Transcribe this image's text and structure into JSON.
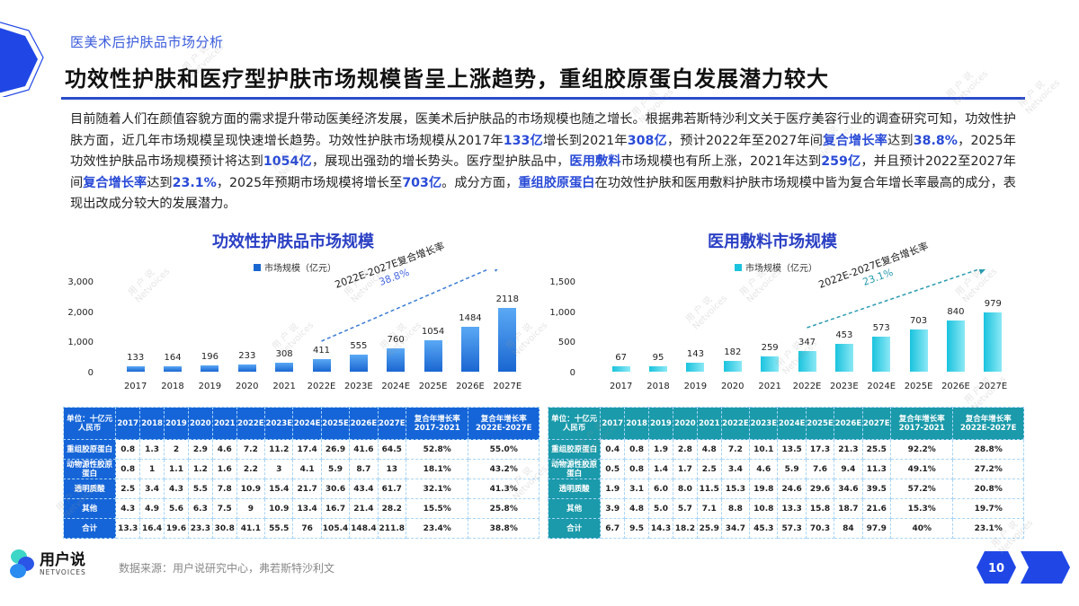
{
  "header": {
    "section_label": "医美术后护肤品市场分析",
    "title": "功效性护肤和医疗型护肤市场规模皆呈上涨趋势，重组胶原蛋白发展潜力较大"
  },
  "intro": {
    "segments": [
      {
        "t": "目前随着人们在颜值容貌方面的需求提升带动医美经济发展，医美术后护肤品的市场规模也随之增长。根据弗若斯特沙利文关于医疗美容行业的调查研究可知，功效性护肤方面，近几年市场规模呈现快速增长趋势。功效性护肤市场规模从2017年",
        "hl": false
      },
      {
        "t": "133亿",
        "hl": true
      },
      {
        "t": "增长到2021年",
        "hl": false
      },
      {
        "t": "308亿",
        "hl": true
      },
      {
        "t": "，预计2022年至2027年间",
        "hl": false
      },
      {
        "t": "复合增长率",
        "hl": true
      },
      {
        "t": "达到",
        "hl": false
      },
      {
        "t": "38.8%",
        "hl": true
      },
      {
        "t": "，2025年功效性护肤品市场规模预计将达到",
        "hl": false
      },
      {
        "t": "1054亿",
        "hl": true
      },
      {
        "t": "，展现出强劲的增长势头。医疗型护肤品中，",
        "hl": false
      },
      {
        "t": "医用敷料",
        "hl": true
      },
      {
        "t": "市场规模也有所上涨，2021年达到",
        "hl": false
      },
      {
        "t": "259亿",
        "hl": true
      },
      {
        "t": "，并且预计2022至2027年间",
        "hl": false
      },
      {
        "t": "复合增长率",
        "hl": true
      },
      {
        "t": "达到",
        "hl": false
      },
      {
        "t": "23.1%",
        "hl": true
      },
      {
        "t": "，2025年预期市场规模将增长至",
        "hl": false
      },
      {
        "t": "703亿",
        "hl": true
      },
      {
        "t": "。成分方面，",
        "hl": false
      },
      {
        "t": "重组胶原蛋白",
        "hl": true
      },
      {
        "t": "在功效性护肤和医用敷料护肤市场规模中皆为复合年增长率最高的成分，表现出改成分较大的发展潜力。",
        "hl": false
      }
    ]
  },
  "chart_data": [
    {
      "type": "bar",
      "title": "功效性护肤品市场规模",
      "legend": [
        "市场规模（亿元）"
      ],
      "categories": [
        "2017",
        "2018",
        "2019",
        "2020",
        "2021",
        "2022E",
        "2023E",
        "2024E",
        "2025E",
        "2026E",
        "2027E"
      ],
      "values": [
        133,
        164,
        196,
        233,
        308,
        411,
        555,
        760,
        1054,
        1484,
        2118
      ],
      "yticks": [
        "0",
        "1,000",
        "2,000",
        "3,000"
      ],
      "ylim": [
        0,
        3000
      ],
      "annotation": {
        "label": "2022E-2027E复合增长率",
        "value": "38.8%"
      },
      "color": "#1a66d1",
      "grid": false,
      "legend_position": "top"
    },
    {
      "type": "bar",
      "title": "医用敷料市场规模",
      "legend": [
        "市场规模（亿元）"
      ],
      "categories": [
        "2017",
        "2018",
        "2019",
        "2020",
        "2021",
        "2022E",
        "2023E",
        "2024E",
        "2025E",
        "2026E",
        "2027E"
      ],
      "values": [
        67,
        95,
        143,
        182,
        259,
        347,
        453,
        573,
        703,
        840,
        979
      ],
      "yticks": [
        "0",
        "500",
        "1,000",
        "1,500"
      ],
      "ylim": [
        0,
        1500
      ],
      "annotation": {
        "label": "2022E-2027E复合增长率",
        "value": "23.1%"
      },
      "color": "#1ac3de",
      "grid": false,
      "legend_position": "top"
    }
  ],
  "tables": [
    {
      "unit_header": "单位：十亿元人民币",
      "columns": [
        "2017",
        "2018",
        "2019",
        "2020",
        "2021",
        "2022E",
        "2023E",
        "2024E",
        "2025E",
        "2026E",
        "2027E",
        "复合年增长率2017-2021",
        "复合年增长率2022E-2027E"
      ],
      "rows": [
        {
          "name": "重组胶原蛋白",
          "values": [
            "0.8",
            "1.3",
            "2",
            "2.9",
            "4.6",
            "7.2",
            "11.2",
            "17.4",
            "26.9",
            "41.6",
            "64.5",
            "52.8%",
            "55.0%"
          ]
        },
        {
          "name": "动物源性胶原蛋白",
          "values": [
            "0.8",
            "1",
            "1.1",
            "1.2",
            "1.6",
            "2.2",
            "3",
            "4.1",
            "5.9",
            "8.7",
            "13",
            "18.1%",
            "43.2%"
          ]
        },
        {
          "name": "透明质酸",
          "values": [
            "2.5",
            "3.4",
            "4.3",
            "5.5",
            "7.8",
            "10.9",
            "15.4",
            "21.7",
            "30.6",
            "43.4",
            "61.7",
            "32.1%",
            "41.3%"
          ]
        },
        {
          "name": "其他",
          "values": [
            "4.3",
            "4.9",
            "5.6",
            "6.3",
            "7.5",
            "9",
            "10.9",
            "13.4",
            "16.7",
            "21.4",
            "28.2",
            "15.5%",
            "25.8%"
          ]
        },
        {
          "name": "合计",
          "values": [
            "13.3",
            "16.4",
            "19.6",
            "23.3",
            "30.8",
            "41.1",
            "55.5",
            "76",
            "105.4",
            "148.4",
            "211.8",
            "23.4%",
            "38.8%"
          ]
        }
      ]
    },
    {
      "unit_header": "单位：十亿元人民币",
      "columns": [
        "2017",
        "2018",
        "2019",
        "2020",
        "2021",
        "2022E",
        "2023E",
        "2024E",
        "2025E",
        "2026E",
        "2027E",
        "复合年增长率2017-2021",
        "复合年增长率2022E-2027E"
      ],
      "rows": [
        {
          "name": "重组胶原蛋白",
          "values": [
            "0.4",
            "0.8",
            "1.9",
            "2.8",
            "4.8",
            "7.2",
            "10.1",
            "13.5",
            "17.3",
            "21.3",
            "25.5",
            "92.2%",
            "28.8%"
          ]
        },
        {
          "name": "动物源性胶原蛋白",
          "values": [
            "0.5",
            "0.8",
            "1.4",
            "1.7",
            "2.5",
            "3.4",
            "4.6",
            "5.9",
            "7.6",
            "9.4",
            "11.3",
            "49.1%",
            "27.2%"
          ]
        },
        {
          "name": "透明质酸",
          "values": [
            "1.9",
            "3.1",
            "6.0",
            "8.0",
            "11.5",
            "15.3",
            "19.8",
            "24.6",
            "29.6",
            "34.6",
            "39.5",
            "57.2%",
            "20.8%"
          ]
        },
        {
          "name": "其他",
          "values": [
            "3.9",
            "4.8",
            "5.0",
            "5.7",
            "7.1",
            "8.8",
            "10.8",
            "13.3",
            "15.8",
            "18.7",
            "21.6",
            "15.3%",
            "19.7%"
          ]
        },
        {
          "name": "合计",
          "values": [
            "6.7",
            "9.5",
            "14.3",
            "18.2",
            "25.9",
            "34.7",
            "45.3",
            "57.3",
            "70.3",
            "84",
            "97.9",
            "40%",
            "23.1%"
          ]
        }
      ]
    }
  ],
  "footer": {
    "logo_cn": "用户说",
    "logo_en": "NETVOICES",
    "source": "数据来源：用户说研究中心，弗若斯特沙利文",
    "page_number": "10"
  },
  "watermark": {
    "cn": "用 户 说",
    "en": "Netvoices"
  },
  "colors": {
    "accent": "#2a4bd7",
    "title_rule": "#2b4cc9",
    "chart1_bar": "#1a66d1",
    "chart2_bar": "#1ac3de",
    "table1_header": "#1565d8",
    "table2_header": "#1a9aaa"
  }
}
